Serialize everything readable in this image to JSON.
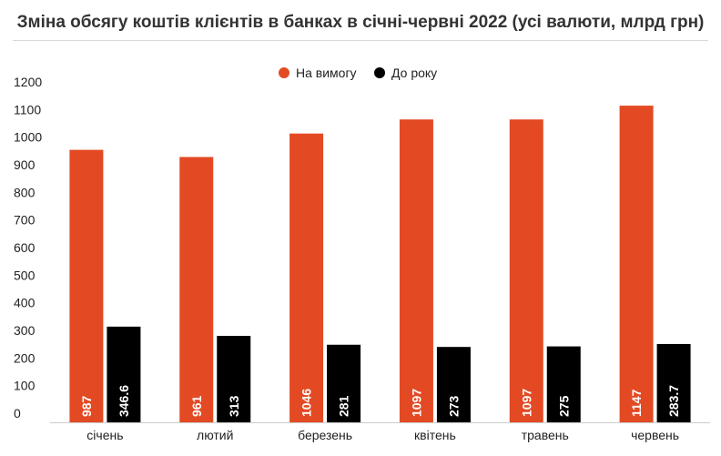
{
  "title": "Зміна обсягу коштів клієнтів в банках в січні-червні 2022 (усі валюти, млрд грн)",
  "chart_data": {
    "type": "bar",
    "title": "Зміна обсягу коштів клієнтів в банках в січні-червні 2022 (усі валюти, млрд грн)",
    "categories": [
      "січень",
      "лютий",
      "березень",
      "квітень",
      "травень",
      "червень"
    ],
    "series": [
      {
        "name": "На вимогу",
        "color": "#e34a23",
        "values": [
          987,
          961,
          1046,
          1097,
          1097,
          1147
        ],
        "labels": [
          "987",
          "961",
          "1046",
          "1097",
          "1097",
          "1147"
        ]
      },
      {
        "name": "До року",
        "color": "#000000",
        "values": [
          346.6,
          313,
          281,
          273,
          275,
          283.7
        ],
        "labels": [
          "346.6",
          "313",
          "281",
          "273",
          "275",
          "283.7"
        ]
      }
    ],
    "ylim": [
      0,
      1200
    ],
    "yticks": [
      0,
      100,
      200,
      300,
      400,
      500,
      600,
      700,
      800,
      900,
      1000,
      1100,
      1200
    ],
    "xlabel": "",
    "ylabel": "",
    "grid": false,
    "legend_position": "top-center"
  }
}
